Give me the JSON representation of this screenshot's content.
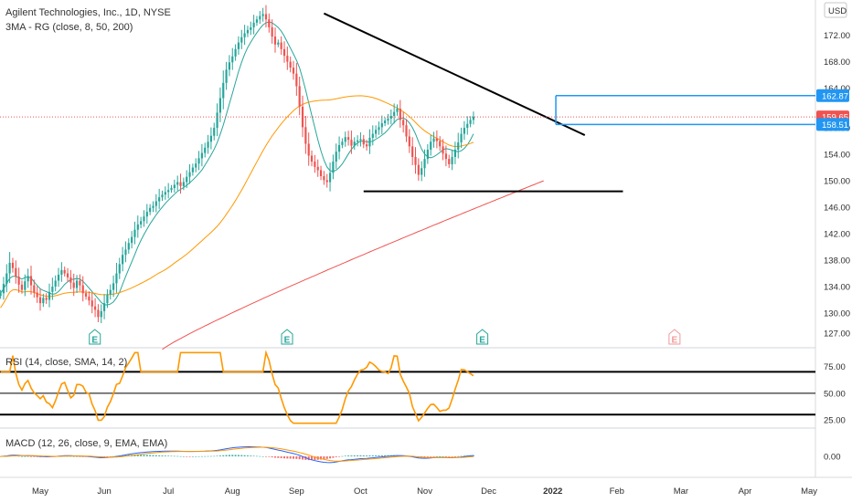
{
  "header": {
    "title": "Agilent Technologies, Inc., 1D, NYSE",
    "indicator": "3MA - RG (close, 8, 50, 200)",
    "currency": "USD"
  },
  "rsi_panel": {
    "title": "RSI (14, close, SMA, 14, 2)"
  },
  "macd_panel": {
    "title": "MACD (12, 26, close, 9, EMA, EMA)"
  },
  "price_tags": [
    {
      "value": "162.87",
      "color": "#2196f3"
    },
    {
      "value": "159.65",
      "color": "#ef5350"
    },
    {
      "value": "158.51",
      "color": "#2196f3"
    }
  ],
  "earnings_markers": [
    {
      "label": "E",
      "date_index": 17,
      "color": "#26a69a"
    },
    {
      "label": "E",
      "date_index": 80,
      "color": "#26a69a"
    },
    {
      "label": "E",
      "date_index": 144,
      "color": "#26a69a"
    },
    {
      "label": "E",
      "date_index": 207,
      "color": "#ef9a9a"
    }
  ],
  "chart_data": {
    "type": "candlestick",
    "title": "Agilent Technologies, Inc., 1D, NYSE",
    "x_labels": [
      "May",
      "Jun",
      "Jul",
      "Aug",
      "Sep",
      "Oct",
      "Nov",
      "Dec",
      "2022",
      "Feb",
      "Mar",
      "Apr",
      "May"
    ],
    "x_label_day_index": [
      0,
      21,
      42,
      63,
      84,
      105,
      126,
      147,
      168,
      189,
      210,
      231,
      252
    ],
    "price_axis": {
      "ticks": [
        127.0,
        130.0,
        134.0,
        138.0,
        142.0,
        146.0,
        150.0,
        154.0,
        158.0,
        164.0,
        168.0,
        172.0
      ],
      "ylim": [
        126.0,
        176.5
      ]
    },
    "candles_closes_approx": [
      131.5,
      132.3,
      132.0,
      133.2,
      134.0,
      134.9,
      135.8,
      136.5,
      136.0,
      135.4,
      134.6,
      133.8,
      134.9,
      134.2,
      133.0,
      132.5,
      131.9,
      131.0,
      130.5,
      129.4,
      130.3,
      131.5,
      132.8,
      133.5,
      134.5,
      136.0,
      137.4,
      138.8,
      139.6,
      140.6,
      141.5,
      142.6,
      143.4,
      143.9,
      144.6,
      145.3,
      145.9,
      146.2,
      146.9,
      147.5,
      147.9,
      148.3,
      148.6,
      148.9,
      149.4,
      149.8,
      149.2,
      149.8,
      150.6,
      151.3,
      152.0,
      152.6,
      153.4,
      154.2,
      155.0,
      155.9,
      156.8,
      158.0,
      160.3,
      162.5,
      164.8,
      166.8,
      167.9,
      168.8,
      169.9,
      170.9,
      171.7,
      172.3,
      172.8,
      173.2,
      173.9,
      174.4,
      174.9,
      175.2,
      174.4,
      173.2,
      171.8,
      170.6,
      170.9,
      169.9,
      168.9,
      168.0,
      167.1,
      166.2,
      164.3,
      161.2,
      158.1,
      155.6,
      153.8,
      152.9,
      152.1,
      151.6,
      150.7,
      150.1,
      149.8,
      151.2,
      152.9,
      154.4,
      155.4,
      155.9,
      156.6,
      156.2,
      155.3,
      155.9,
      156.1,
      156.3,
      155.5,
      155.2,
      156.5,
      157.1,
      157.7,
      158.1,
      158.7,
      159.1,
      159.4,
      159.8,
      160.4,
      160.9,
      159.2,
      158.4,
      156.7,
      155.2,
      153.6,
      152.4,
      150.9,
      151.9,
      153.3,
      154.7,
      155.9,
      156.4,
      156.0,
      155.2,
      154.1,
      153.3,
      152.5,
      153.6,
      154.7,
      155.8,
      157.1,
      158.0,
      158.6,
      159.2,
      159.7
    ],
    "price_levels": {
      "last_close": 159.65,
      "resistance_box_top": 162.87,
      "resistance_box_bottom": 158.51,
      "support_line": 148.4
    },
    "moving_averages": [
      {
        "name": "MA 8",
        "color": "#26a69a"
      },
      {
        "name": "MA 50",
        "color": "#ff9800"
      },
      {
        "name": "MA 200",
        "color": "#ef5350"
      }
    ],
    "rsi": {
      "ticks": [
        25.0,
        50.0,
        75.0
      ],
      "bands": [
        70,
        50,
        30
      ],
      "ylim": [
        20,
        90
      ],
      "color": "#ff9800"
    },
    "macd": {
      "ticks": [
        0.0
      ],
      "macd_color": "#2962ff",
      "signal_color": "#ff9800",
      "hist_pos_color": "#26a69a",
      "hist_neg_color": "#ef5350"
    }
  }
}
